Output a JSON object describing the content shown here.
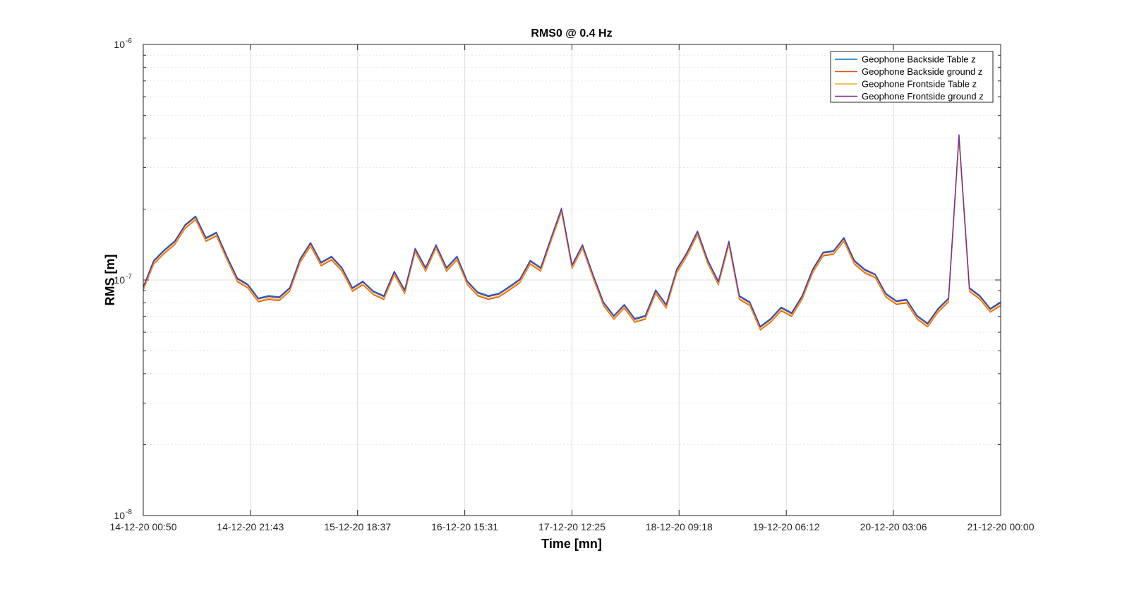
{
  "chart_data": {
    "type": "line",
    "title": "RMS0 @ 0.4 Hz",
    "xlabel": "Time [mn]",
    "ylabel": "RMS [m]",
    "yscale": "log",
    "ylim": [
      1e-08,
      1e-06
    ],
    "xlim": [
      "14-12-20 00:50",
      "21-12-20 00:00"
    ],
    "x_tick_labels": [
      "14-12-20 00:50",
      "14-12-20 21:43",
      "15-12-20 18:37",
      "16-12-20 15:31",
      "17-12-20 12:25",
      "18-12-20 09:18",
      "19-12-20 06:12",
      "20-12-20 03:06",
      "21-12-20 00:00"
    ],
    "y_ticks": [
      {
        "base": "10",
        "exp": "-8",
        "value": 1e-08
      },
      {
        "base": "10",
        "exp": "-7",
        "value": 1e-07
      },
      {
        "base": "10",
        "exp": "-6",
        "value": 1e-06
      }
    ],
    "grid": true,
    "legend_position": "top-right",
    "series": [
      {
        "name": "Geophone Backside Table z",
        "color": "#0072BD",
        "offset_log": 0.004
      },
      {
        "name": "Geophone Backside ground z",
        "color": "#D95319",
        "offset_log": -0.012
      },
      {
        "name": "Geophone Frontside Table z",
        "color": "#EDB120",
        "offset_log": -0.008
      },
      {
        "name": "Geophone Frontside ground z",
        "color": "#7E2F8E",
        "offset_log": 0.0
      }
    ],
    "x": [
      "14-12-20 00:50",
      "14-12-20 02:52",
      "14-12-20 04:55",
      "14-12-20 06:57",
      "14-12-20 08:59",
      "14-12-20 11:02",
      "14-12-20 13:04",
      "14-12-20 15:06",
      "14-12-20 17:09",
      "14-12-20 19:11",
      "14-12-20 21:13",
      "14-12-20 23:16",
      "15-12-20 01:18",
      "15-12-20 03:20",
      "15-12-20 05:23",
      "15-12-20 07:25",
      "15-12-20 09:27",
      "15-12-20 11:30",
      "15-12-20 13:32",
      "15-12-20 15:34",
      "15-12-20 17:37",
      "15-12-20 19:39",
      "15-12-20 21:41",
      "15-12-20 23:44",
      "16-12-20 01:46",
      "16-12-20 03:48",
      "16-12-20 05:51",
      "16-12-20 07:53",
      "16-12-20 09:55",
      "16-12-20 11:58",
      "16-12-20 14:00",
      "16-12-20 16:02",
      "16-12-20 18:05",
      "16-12-20 20:07",
      "16-12-20 22:09",
      "17-12-20 00:12",
      "17-12-20 02:14",
      "17-12-20 04:16",
      "17-12-20 06:19",
      "17-12-20 08:21",
      "17-12-20 10:23",
      "17-12-20 12:26",
      "17-12-20 14:28",
      "17-12-20 16:30",
      "17-12-20 18:33",
      "17-12-20 20:35",
      "17-12-20 22:37",
      "18-12-20 00:40",
      "18-12-20 02:42",
      "18-12-20 04:44",
      "18-12-20 06:47",
      "18-12-20 08:49",
      "18-12-20 10:51",
      "18-12-20 12:54",
      "18-12-20 14:56",
      "18-12-20 16:58",
      "18-12-20 19:01",
      "18-12-20 21:03",
      "18-12-20 23:05",
      "19-12-20 01:08",
      "19-12-20 03:10",
      "19-12-20 05:12",
      "19-12-20 07:15",
      "19-12-20 09:17",
      "19-12-20 11:19",
      "19-12-20 13:22",
      "19-12-20 15:24",
      "19-12-20 17:26",
      "19-12-20 19:29",
      "19-12-20 21:31",
      "19-12-20 23:33",
      "20-12-20 01:36",
      "20-12-20 03:38",
      "20-12-20 05:40",
      "20-12-20 07:43",
      "20-12-20 09:45",
      "20-12-20 11:47",
      "20-12-20 13:50",
      "20-12-20 15:52",
      "20-12-20 17:54",
      "20-12-20 19:57",
      "20-12-20 21:59",
      "21-12-20 00:00"
    ],
    "values": [
      9.3e-08,
      1.2e-07,
      1.33e-07,
      1.45e-07,
      1.7e-07,
      1.85e-07,
      1.5e-07,
      1.58e-07,
      1.25e-07,
      1.01e-07,
      9.5e-08,
      8.3e-08,
      8.5e-08,
      8.4e-08,
      9.2e-08,
      1.22e-07,
      1.43e-07,
      1.18e-07,
      1.25e-07,
      1.12e-07,
      9.2e-08,
      9.8e-08,
      8.9e-08,
      8.5e-08,
      1.08e-07,
      9e-08,
      1.35e-07,
      1.12e-07,
      1.4e-07,
      1.12e-07,
      1.25e-07,
      9.8e-08,
      8.8e-08,
      8.5e-08,
      8.7e-08,
      9.3e-08,
      1e-07,
      1.2e-07,
      1.12e-07,
      1.5e-07,
      2e-07,
      1.15e-07,
      1.4e-07,
      1.05e-07,
      8e-08,
      7e-08,
      7.8e-08,
      6.8e-08,
      7e-08,
      9e-08,
      7.8e-08,
      1.1e-07,
      1.3e-07,
      1.6e-07,
      1.2e-07,
      9.8e-08,
      1.45e-07,
      8.5e-08,
      8e-08,
      6.3e-08,
      6.8e-08,
      7.6e-08,
      7.2e-08,
      8.5e-08,
      1.1e-07,
      1.3e-07,
      1.32e-07,
      1.5e-07,
      1.2e-07,
      1.1e-07,
      1.05e-07,
      8.7e-08,
      8.1e-08,
      8.2e-08,
      7e-08,
      6.5e-08,
      7.5e-08,
      8.3e-08,
      4.1e-07,
      9.2e-08,
      8.5e-08,
      7.5e-08,
      8e-08
    ]
  }
}
